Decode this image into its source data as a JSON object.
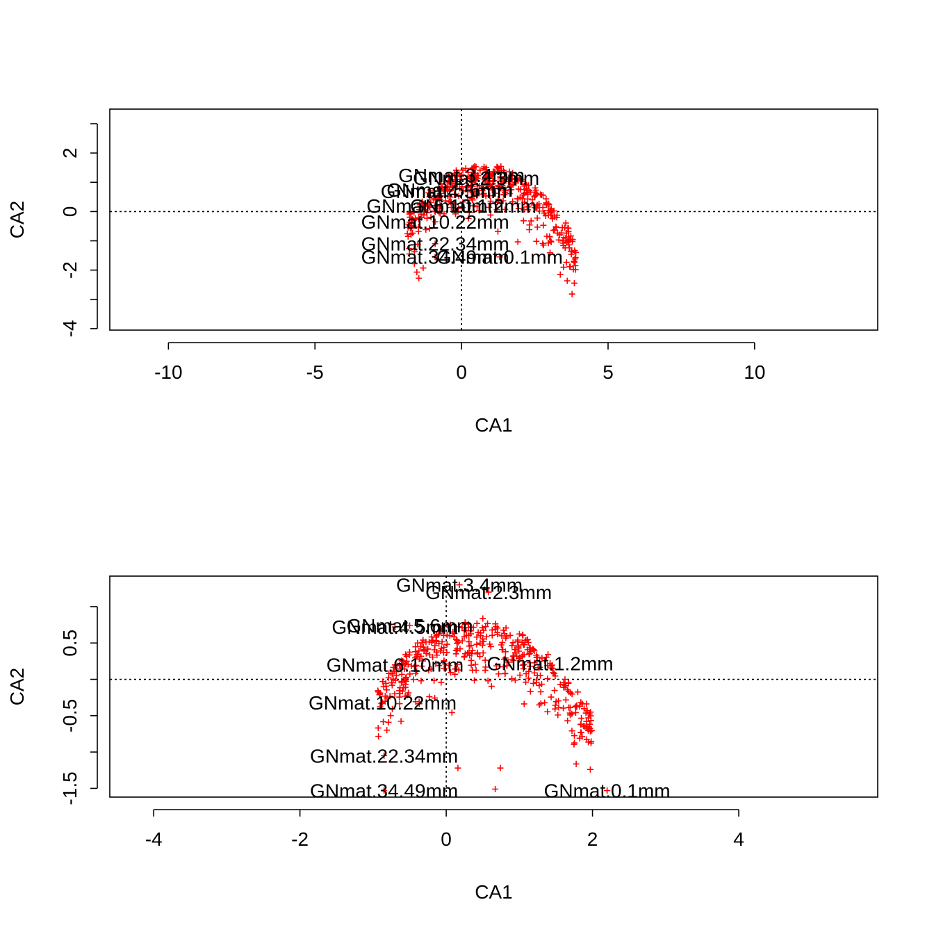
{
  "chart_data": [
    {
      "type": "scatter",
      "xlabel": "CA1",
      "ylabel": "CA2",
      "xlim": [
        -12,
        14.2
      ],
      "ylim": [
        -4.05,
        3.5
      ],
      "xticks": [
        -10,
        -5,
        0,
        5,
        10
      ],
      "yticks": [
        -4,
        -2,
        0,
        2
      ],
      "xtick_labels": [
        "-10",
        "-5",
        "0",
        "5",
        "10"
      ],
      "ytick_labels": [
        "-4",
        "-2",
        "0",
        "2"
      ],
      "origin_lines": true,
      "point_color": "#ff0000",
      "marker": "+",
      "labels": [
        {
          "text": "GNmat.3.4mm",
          "x": 0.0,
          "y": 1.25
        },
        {
          "text": "GNmat.2.3mm",
          "x": 0.5,
          "y": 1.15
        },
        {
          "text": "GNmat.4.5mm",
          "x": -0.6,
          "y": 0.7
        },
        {
          "text": "GNmat.5.6mm",
          "x": -0.4,
          "y": 0.75
        },
        {
          "text": "GNmat.6.10mm",
          "x": -0.9,
          "y": 0.2
        },
        {
          "text": "GNmat.1.2mm",
          "x": 0.4,
          "y": 0.2
        },
        {
          "text": "GNmat.10.22mm",
          "x": -0.9,
          "y": -0.35
        },
        {
          "text": "GNmat.22.34mm",
          "x": -0.9,
          "y": -1.1
        },
        {
          "text": "GNmat.34.49mm",
          "x": -0.9,
          "y": -1.55
        },
        {
          "text": "GNmat.0.1mm",
          "x": 1.3,
          "y": -1.55
        }
      ]
    },
    {
      "type": "scatter",
      "xlabel": "CA1",
      "ylabel": "CA2",
      "xlim": [
        -4.6,
        5.9
      ],
      "ylim": [
        -1.62,
        1.42
      ],
      "xticks": [
        -4,
        -2,
        0,
        2,
        4
      ],
      "yticks": [
        -1.5,
        -0.5,
        0.5
      ],
      "xtick_labels": [
        "-4",
        "-2",
        "0",
        "2",
        "4"
      ],
      "ytick_labels": [
        "-1.5",
        "-0.5",
        "0.5"
      ],
      "origin_lines": true,
      "point_color": "#ff0000",
      "marker": "+",
      "labels": [
        {
          "text": "GNmat.3.4mm",
          "x": 0.18,
          "y": 1.3
        },
        {
          "text": "GNmat.2.3mm",
          "x": 0.58,
          "y": 1.2
        },
        {
          "text": "GNmat.4.5mm",
          "x": -0.7,
          "y": 0.72
        },
        {
          "text": "GNmat.5.6mm",
          "x": -0.5,
          "y": 0.74
        },
        {
          "text": "GNmat.6.10mm",
          "x": -0.7,
          "y": 0.2
        },
        {
          "text": "GNmat.1.2mm",
          "x": 1.42,
          "y": 0.22
        },
        {
          "text": "GNmat.10.22mm",
          "x": -0.87,
          "y": -0.32
        },
        {
          "text": "GNmat.22.34mm",
          "x": -0.85,
          "y": -1.05
        },
        {
          "text": "GNmat.34.49mm",
          "x": -0.85,
          "y": -1.53
        },
        {
          "text": "GNmat.0.1mm",
          "x": 2.2,
          "y": -1.53
        }
      ],
      "isolated_points": [
        {
          "x": 0.74,
          "y": -1.22
        },
        {
          "x": 0.16,
          "y": -1.22
        },
        {
          "x": 1.97,
          "y": -1.24
        },
        {
          "x": 0.67,
          "y": -1.51
        }
      ]
    }
  ]
}
